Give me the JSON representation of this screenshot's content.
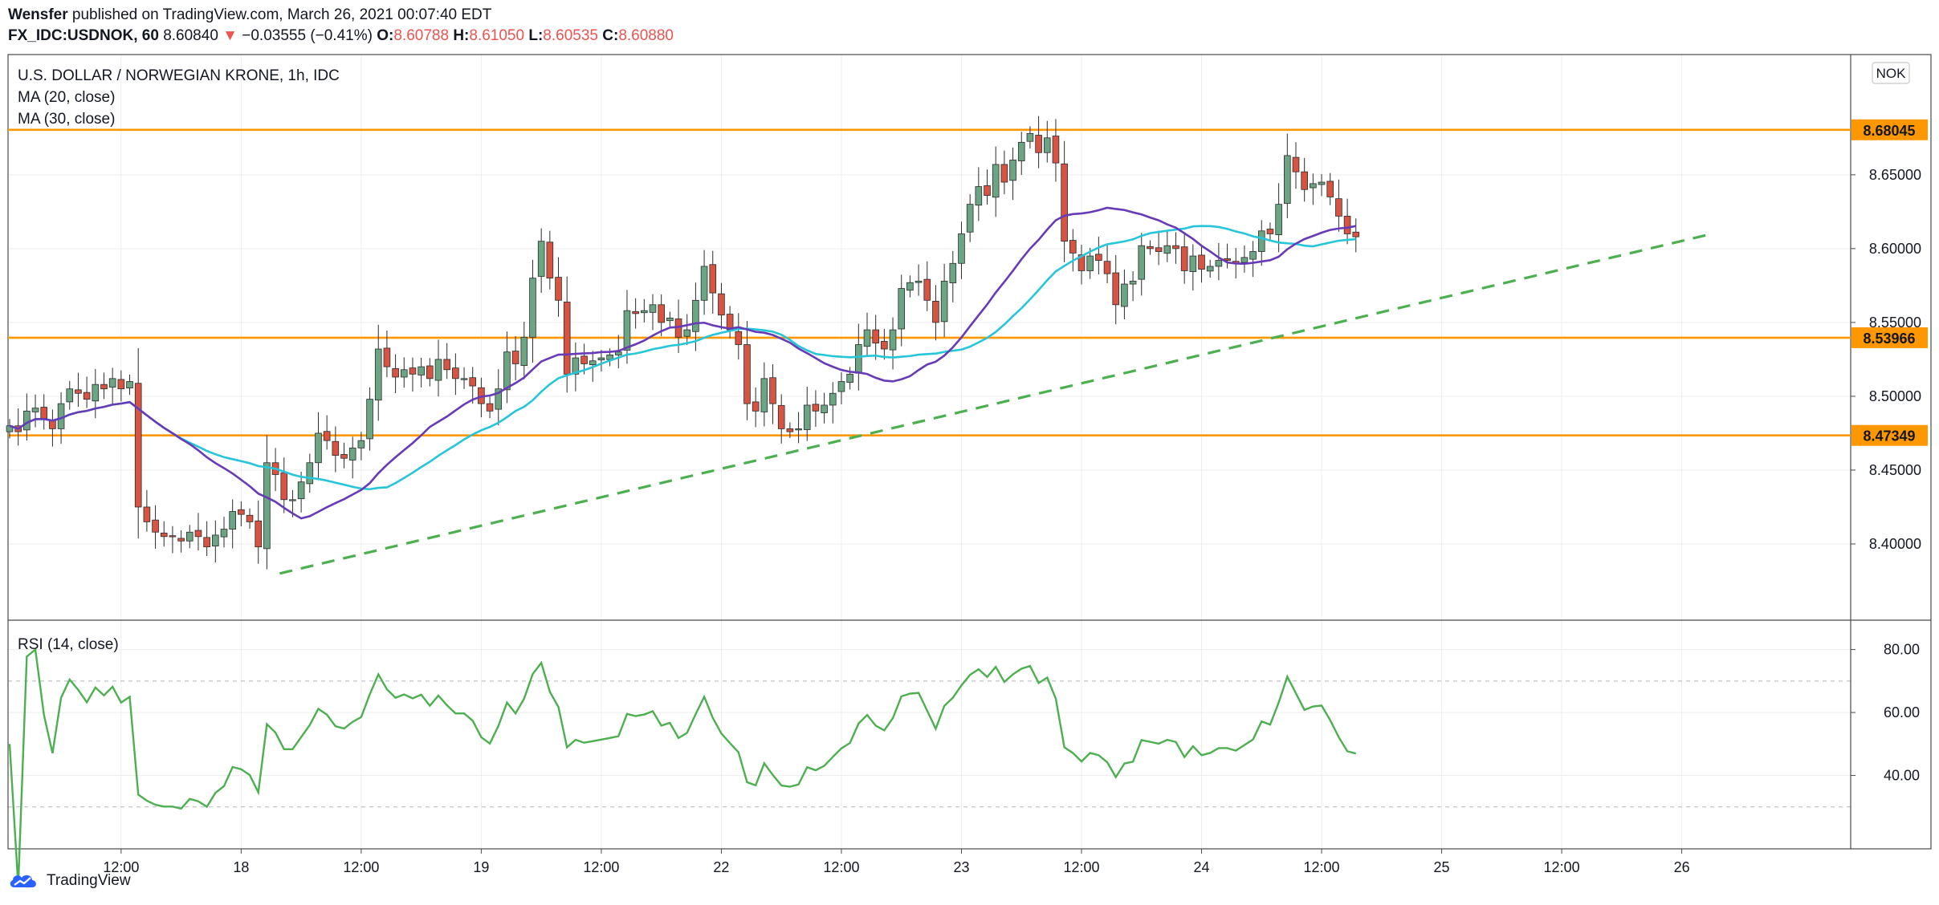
{
  "header": {
    "author": "Wensfer",
    "published_text": "published on TradingView.com, March 26, 2021 00:07:40 EDT",
    "symbol": "FX_IDC:USDNOK, 60",
    "last": "8.60840",
    "change": "−0.03555 (−0.41%)",
    "o_label": "O:",
    "o": "8.60788",
    "h_label": "H:",
    "h": "8.61050",
    "l_label": "L:",
    "l": "8.60535",
    "c_label": "C:",
    "c": "8.60880"
  },
  "legend": {
    "title": "U.S. DOLLAR / NORWEGIAN KRONE, 1h, IDC",
    "ma20": "MA (20, close)",
    "ma30": "MA (30, close)",
    "rsi": "RSI (14, close)"
  },
  "currency_badge": "NOK",
  "footer": {
    "brand": "TradingView"
  },
  "colors": {
    "up": "#6ba583",
    "down": "#d75442",
    "ma20": "#673ab7",
    "ma30": "#26c6da",
    "rsi": "#4caf50",
    "level": "#ff9800",
    "trend": "#4caf50",
    "badge_red": "#ef5350"
  },
  "chart_data": {
    "type": "candlestick",
    "price_axis": {
      "min": 8.35,
      "max": 8.72,
      "ticks": [
        "8.40000",
        "8.45000",
        "8.50000",
        "8.55000",
        "8.60000",
        "8.65000"
      ]
    },
    "time_axis_ticks": [
      {
        "bar": 13,
        "label": "12:00"
      },
      {
        "bar": 27,
        "label": "18"
      },
      {
        "bar": 41,
        "label": "12:00"
      },
      {
        "bar": 55,
        "label": "19"
      },
      {
        "bar": 69,
        "label": "12:00"
      },
      {
        "bar": 83,
        "label": "22"
      },
      {
        "bar": 97,
        "label": "12:00"
      },
      {
        "bar": 111,
        "label": "23"
      },
      {
        "bar": 125,
        "label": "12:00"
      },
      {
        "bar": 139,
        "label": "24"
      },
      {
        "bar": 153,
        "label": "12:00"
      },
      {
        "bar": 167,
        "label": "25"
      },
      {
        "bar": 181,
        "label": "12:00"
      },
      {
        "bar": 195,
        "label": "26"
      }
    ],
    "horizontal_levels": [
      {
        "value": 8.68045,
        "label": "8.68045"
      },
      {
        "value": 8.53966,
        "label": "8.53966"
      },
      {
        "value": 8.47349,
        "label": "8.47349"
      }
    ],
    "trendline": {
      "from": {
        "bar": 31.5,
        "price": 8.38
      },
      "to": {
        "bar": 198.5,
        "price": 8.61
      }
    },
    "closes": [
      8.48,
      8.476,
      8.49,
      8.492,
      8.485,
      8.478,
      8.495,
      8.505,
      8.502,
      8.498,
      8.508,
      8.505,
      8.512,
      8.505,
      8.51,
      8.425,
      8.415,
      8.408,
      8.405,
      8.405,
      8.402,
      8.408,
      8.405,
      8.398,
      8.406,
      8.41,
      8.422,
      8.42,
      8.415,
      8.398,
      8.455,
      8.447,
      8.43,
      8.43,
      8.442,
      8.455,
      8.475,
      8.47,
      8.46,
      8.458,
      8.465,
      8.47,
      8.498,
      8.532,
      8.52,
      8.513,
      8.518,
      8.515,
      8.52,
      8.512,
      8.525,
      8.518,
      8.512,
      8.512,
      8.507,
      8.495,
      8.49,
      8.505,
      8.53,
      8.522,
      8.54,
      8.58,
      8.605,
      8.58,
      8.565,
      8.515,
      8.526,
      8.522,
      8.524,
      8.526,
      8.528,
      8.53,
      8.558,
      8.556,
      8.558,
      8.562,
      8.55,
      8.553,
      8.54,
      8.545,
      8.565,
      8.588,
      8.57,
      8.555,
      8.545,
      8.535,
      8.495,
      8.49,
      8.512,
      8.495,
      8.478,
      8.476,
      8.478,
      8.494,
      8.49,
      8.494,
      8.502,
      8.51,
      8.515,
      8.535,
      8.545,
      8.536,
      8.532,
      8.545,
      8.573,
      8.577,
      8.578,
      8.565,
      8.55,
      8.578,
      8.59,
      8.61,
      8.63,
      8.642,
      8.636,
      8.657,
      8.645,
      8.66,
      8.672,
      8.678,
      8.665,
      8.675,
      8.658,
      8.605,
      8.597,
      8.585,
      8.595,
      8.592,
      8.583,
      8.562,
      8.576,
      8.578,
      8.602,
      8.6,
      8.598,
      8.602,
      8.6,
      8.585,
      8.595,
      8.586,
      8.588,
      8.592,
      8.592,
      8.59,
      8.594,
      8.598,
      8.612,
      8.61,
      8.63,
      8.663,
      8.652,
      8.64,
      8.644,
      8.645,
      8.635,
      8.622,
      8.61,
      8.608
    ]
  }
}
